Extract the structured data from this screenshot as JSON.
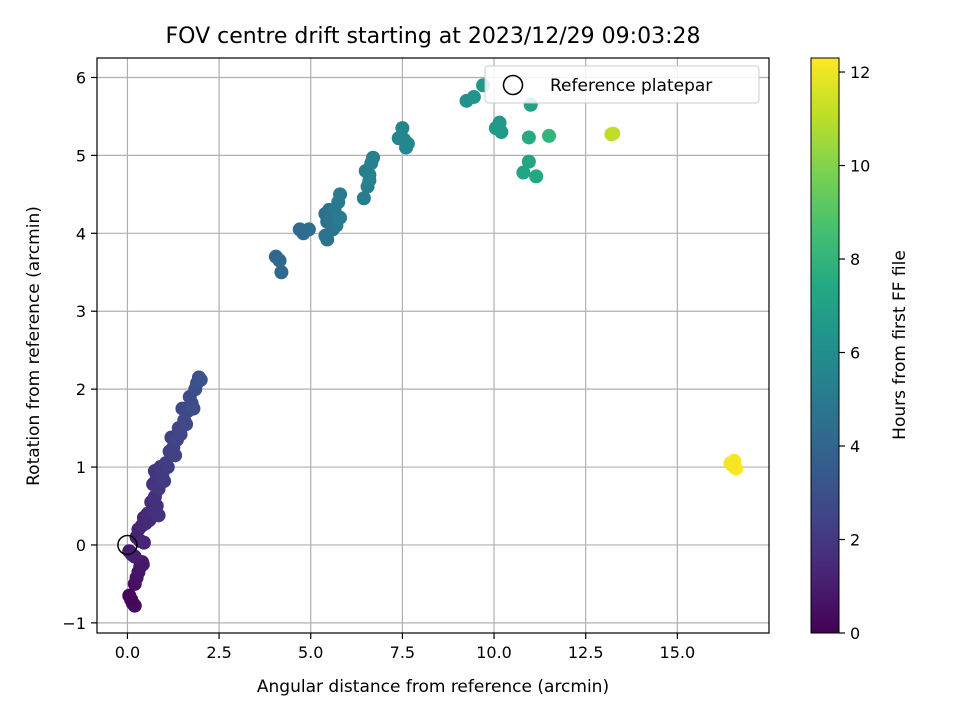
{
  "chart_data": {
    "type": "scatter",
    "title": "FOV centre drift starting at 2023/12/29 09:03:28",
    "xlabel": "Angular distance from reference (arcmin)",
    "ylabel": "Rotation from reference (arcmin)",
    "xlim": [
      -0.83,
      17.5
    ],
    "ylim": [
      -1.13,
      6.25
    ],
    "x_ticks": [
      0.0,
      2.5,
      5.0,
      7.5,
      10.0,
      12.5,
      15.0
    ],
    "x_tick_labels": [
      "0.0",
      "2.5",
      "5.0",
      "7.5",
      "10.0",
      "12.5",
      "15.0"
    ],
    "y_ticks": [
      -1,
      0,
      1,
      2,
      3,
      4,
      5,
      6
    ],
    "y_tick_labels": [
      "−1",
      "0",
      "1",
      "2",
      "3",
      "4",
      "5",
      "6"
    ],
    "grid": true,
    "legend": {
      "placement": "top-right",
      "entries": [
        "Reference platepar"
      ]
    },
    "reference_point": {
      "x": 0.0,
      "y": 0.0
    },
    "colorbar": {
      "label": "Hours from first FF file",
      "range": [
        0,
        12.3
      ],
      "ticks": [
        0,
        2,
        4,
        6,
        8,
        10,
        12
      ],
      "tick_labels": [
        "0",
        "2",
        "4",
        "6",
        "8",
        "10",
        "12"
      ],
      "colormap": "viridis"
    },
    "points": [
      {
        "x": 0.05,
        "y": -0.65,
        "c": 0.2
      },
      {
        "x": 0.15,
        "y": -0.75,
        "c": 0.3
      },
      {
        "x": 0.2,
        "y": -0.78,
        "c": 0.35
      },
      {
        "x": 0.1,
        "y": -0.7,
        "c": 0.25
      },
      {
        "x": 0.2,
        "y": -0.5,
        "c": 0.5
      },
      {
        "x": 0.25,
        "y": -0.42,
        "c": 0.6
      },
      {
        "x": 0.3,
        "y": -0.35,
        "c": 0.7
      },
      {
        "x": 0.35,
        "y": -0.28,
        "c": 0.75
      },
      {
        "x": 0.4,
        "y": -0.22,
        "c": 0.8
      },
      {
        "x": 0.42,
        "y": -0.25,
        "c": 0.85
      },
      {
        "x": 0.05,
        "y": -0.08,
        "c": 0.9
      },
      {
        "x": 0.12,
        "y": -0.12,
        "c": 1.0
      },
      {
        "x": 0.2,
        "y": -0.15,
        "c": 1.05
      },
      {
        "x": 0.25,
        "y": 0.1,
        "c": 1.1
      },
      {
        "x": 0.3,
        "y": 0.2,
        "c": 1.15
      },
      {
        "x": 0.35,
        "y": 0.05,
        "c": 1.2
      },
      {
        "x": 0.45,
        "y": 0.03,
        "c": 1.25
      },
      {
        "x": 0.4,
        "y": 0.25,
        "c": 1.3
      },
      {
        "x": 0.45,
        "y": 0.35,
        "c": 1.35
      },
      {
        "x": 0.5,
        "y": 0.28,
        "c": 1.4
      },
      {
        "x": 0.55,
        "y": 0.4,
        "c": 1.45
      },
      {
        "x": 0.6,
        "y": 0.32,
        "c": 1.5
      },
      {
        "x": 0.65,
        "y": 0.55,
        "c": 1.55
      },
      {
        "x": 0.7,
        "y": 0.45,
        "c": 1.6
      },
      {
        "x": 0.75,
        "y": 0.62,
        "c": 1.65
      },
      {
        "x": 0.8,
        "y": 0.5,
        "c": 1.7
      },
      {
        "x": 0.85,
        "y": 0.38,
        "c": 1.75
      },
      {
        "x": 0.7,
        "y": 0.78,
        "c": 1.8
      },
      {
        "x": 0.75,
        "y": 0.95,
        "c": 1.85
      },
      {
        "x": 0.8,
        "y": 0.85,
        "c": 1.9
      },
      {
        "x": 0.85,
        "y": 0.72,
        "c": 1.95
      },
      {
        "x": 0.9,
        "y": 1.0,
        "c": 2.0
      },
      {
        "x": 0.95,
        "y": 0.9,
        "c": 2.05
      },
      {
        "x": 1.0,
        "y": 0.82,
        "c": 2.1
      },
      {
        "x": 1.05,
        "y": 1.05,
        "c": 2.15
      },
      {
        "x": 1.1,
        "y": 1.0,
        "c": 2.2
      },
      {
        "x": 1.15,
        "y": 1.2,
        "c": 2.25
      },
      {
        "x": 1.2,
        "y": 1.38,
        "c": 2.3
      },
      {
        "x": 1.25,
        "y": 1.25,
        "c": 2.35
      },
      {
        "x": 1.3,
        "y": 1.15,
        "c": 2.4
      },
      {
        "x": 1.35,
        "y": 1.35,
        "c": 2.45
      },
      {
        "x": 1.4,
        "y": 1.5,
        "c": 2.5
      },
      {
        "x": 1.45,
        "y": 1.42,
        "c": 2.55
      },
      {
        "x": 1.5,
        "y": 1.75,
        "c": 2.6
      },
      {
        "x": 1.55,
        "y": 1.6,
        "c": 2.65
      },
      {
        "x": 1.6,
        "y": 1.55,
        "c": 2.7
      },
      {
        "x": 1.65,
        "y": 1.72,
        "c": 2.75
      },
      {
        "x": 1.7,
        "y": 1.9,
        "c": 2.8
      },
      {
        "x": 1.75,
        "y": 1.82,
        "c": 2.85
      },
      {
        "x": 1.8,
        "y": 1.75,
        "c": 2.9
      },
      {
        "x": 1.85,
        "y": 2.0,
        "c": 2.95
      },
      {
        "x": 1.9,
        "y": 2.08,
        "c": 3.0
      },
      {
        "x": 1.95,
        "y": 2.15,
        "c": 3.05
      },
      {
        "x": 2.0,
        "y": 2.12,
        "c": 3.1
      },
      {
        "x": 4.05,
        "y": 3.7,
        "c": 4.1
      },
      {
        "x": 4.15,
        "y": 3.65,
        "c": 4.15
      },
      {
        "x": 4.2,
        "y": 3.5,
        "c": 4.2
      },
      {
        "x": 4.7,
        "y": 4.05,
        "c": 4.3
      },
      {
        "x": 4.8,
        "y": 4.0,
        "c": 4.35
      },
      {
        "x": 4.95,
        "y": 4.05,
        "c": 4.4
      },
      {
        "x": 5.4,
        "y": 4.25,
        "c": 4.5
      },
      {
        "x": 5.45,
        "y": 4.15,
        "c": 4.55
      },
      {
        "x": 5.5,
        "y": 4.3,
        "c": 4.6
      },
      {
        "x": 5.4,
        "y": 3.97,
        "c": 4.65
      },
      {
        "x": 5.45,
        "y": 3.92,
        "c": 4.7
      },
      {
        "x": 5.55,
        "y": 4.2,
        "c": 4.75
      },
      {
        "x": 5.6,
        "y": 4.05,
        "c": 4.8
      },
      {
        "x": 5.65,
        "y": 4.3,
        "c": 4.85
      },
      {
        "x": 5.7,
        "y": 4.1,
        "c": 4.9
      },
      {
        "x": 5.75,
        "y": 4.4,
        "c": 4.95
      },
      {
        "x": 5.8,
        "y": 4.5,
        "c": 5.0
      },
      {
        "x": 5.8,
        "y": 4.2,
        "c": 5.05
      },
      {
        "x": 6.45,
        "y": 4.45,
        "c": 5.1
      },
      {
        "x": 6.5,
        "y": 4.8,
        "c": 5.15
      },
      {
        "x": 6.55,
        "y": 4.6,
        "c": 5.2
      },
      {
        "x": 6.6,
        "y": 4.75,
        "c": 5.25
      },
      {
        "x": 6.65,
        "y": 4.9,
        "c": 5.3
      },
      {
        "x": 6.7,
        "y": 4.97,
        "c": 5.35
      },
      {
        "x": 6.6,
        "y": 4.68,
        "c": 5.4
      },
      {
        "x": 7.4,
        "y": 5.22,
        "c": 5.5
      },
      {
        "x": 7.5,
        "y": 5.35,
        "c": 5.55
      },
      {
        "x": 7.55,
        "y": 5.2,
        "c": 5.6
      },
      {
        "x": 7.6,
        "y": 5.1,
        "c": 5.65
      },
      {
        "x": 7.65,
        "y": 5.15,
        "c": 5.7
      },
      {
        "x": 9.25,
        "y": 5.7,
        "c": 6.2
      },
      {
        "x": 9.45,
        "y": 5.75,
        "c": 6.3
      },
      {
        "x": 9.7,
        "y": 5.9,
        "c": 6.4
      },
      {
        "x": 10.05,
        "y": 5.35,
        "c": 6.5
      },
      {
        "x": 10.15,
        "y": 5.42,
        "c": 6.55
      },
      {
        "x": 10.2,
        "y": 5.3,
        "c": 6.6
      },
      {
        "x": 10.8,
        "y": 4.78,
        "c": 7.2
      },
      {
        "x": 10.95,
        "y": 4.92,
        "c": 7.3
      },
      {
        "x": 11.15,
        "y": 4.73,
        "c": 7.4
      },
      {
        "x": 10.95,
        "y": 5.23,
        "c": 7.5
      },
      {
        "x": 11.0,
        "y": 5.65,
        "c": 7.0
      },
      {
        "x": 11.5,
        "y": 5.25,
        "c": 8.0
      },
      {
        "x": 13.2,
        "y": 5.27,
        "c": 11.0
      },
      {
        "x": 13.25,
        "y": 5.28,
        "c": 11.1
      },
      {
        "x": 16.45,
        "y": 1.05,
        "c": 12.1
      },
      {
        "x": 16.55,
        "y": 1.08,
        "c": 12.2
      },
      {
        "x": 16.6,
        "y": 0.98,
        "c": 12.3
      },
      {
        "x": 16.5,
        "y": 1.02,
        "c": 12.15
      }
    ]
  }
}
